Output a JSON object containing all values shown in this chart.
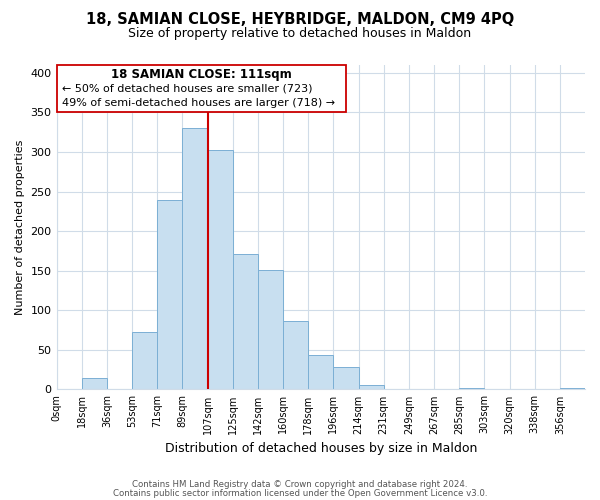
{
  "title": "18, SAMIAN CLOSE, HEYBRIDGE, MALDON, CM9 4PQ",
  "subtitle": "Size of property relative to detached houses in Maldon",
  "xlabel": "Distribution of detached houses by size in Maldon",
  "ylabel": "Number of detached properties",
  "bar_labels": [
    "0sqm",
    "18sqm",
    "36sqm",
    "53sqm",
    "71sqm",
    "89sqm",
    "107sqm",
    "125sqm",
    "142sqm",
    "160sqm",
    "178sqm",
    "196sqm",
    "214sqm",
    "231sqm",
    "249sqm",
    "267sqm",
    "285sqm",
    "303sqm",
    "320sqm",
    "338sqm",
    "356sqm"
  ],
  "bar_heights": [
    0,
    15,
    0,
    72,
    240,
    330,
    303,
    171,
    151,
    87,
    43,
    28,
    6,
    0,
    0,
    0,
    2,
    0,
    0,
    0,
    2
  ],
  "bar_color": "#c8dff0",
  "bar_edge_color": "#7bafd4",
  "vline_x_idx": 5,
  "vline_color": "#cc0000",
  "annotation_title": "18 SAMIAN CLOSE: 111sqm",
  "annotation_line1": "← 50% of detached houses are smaller (723)",
  "annotation_line2": "49% of semi-detached houses are larger (718) →",
  "ylim": [
    0,
    410
  ],
  "yticks": [
    0,
    50,
    100,
    150,
    200,
    250,
    300,
    350,
    400
  ],
  "footer1": "Contains HM Land Registry data © Crown copyright and database right 2024.",
  "footer2": "Contains public sector information licensed under the Open Government Licence v3.0.",
  "bg_color": "#ffffff",
  "grid_color": "#d0dce8"
}
